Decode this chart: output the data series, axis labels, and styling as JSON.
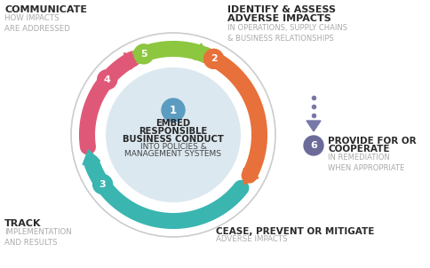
{
  "bg_color": "#ffffff",
  "circle_outer_color": "#cccccc",
  "circle_inner_color": "#dce8f0",
  "arrow_colors": {
    "2": "#e8703a",
    "3": "#3ab5b0",
    "4": "#e05878",
    "5": "#8dc63f"
  },
  "number_colors": {
    "1": "#5b9cc0",
    "2": "#e8703a",
    "3": "#3ab5b0",
    "4": "#e05878",
    "5": "#8dc63f",
    "6": "#6b6b9a"
  },
  "labels": {
    "1_line1": "EMBED",
    "1_line2": "RESPONSIBLE",
    "1_line3": "BUSINESS CONDUCT",
    "1_line4": "INTO POLICIES &",
    "1_line5": "MANAGEMENT SYSTEMS",
    "2_bold1": "IDENTIFY & ASSESS",
    "2_bold2": "ADVERSE IMPACTS",
    "2_sub": "IN OPERATIONS, SUPPLY CHAINS\n& BUSINESS RELATIONSHIPS",
    "3_bold": "CEASE, PREVENT OR MITIGATE",
    "3_sub": "ADVERSE IMPACTS",
    "4_bold": "TRACK",
    "4_sub": "IMPLEMENTATION\nAND RESULTS",
    "5_bold": "COMMUNICATE",
    "5_sub": "HOW IMPACTS\nARE ADDRESSED",
    "6_bold1": "PROVIDE FOR OR",
    "6_bold2": "COOPERATE",
    "6_sub": "IN REMEDIATION\nWHEN APPROPRIATE"
  },
  "dotted_color": "#7878a8",
  "text_gray": "#aaaaaa",
  "text_dark": "#2a2a2a"
}
